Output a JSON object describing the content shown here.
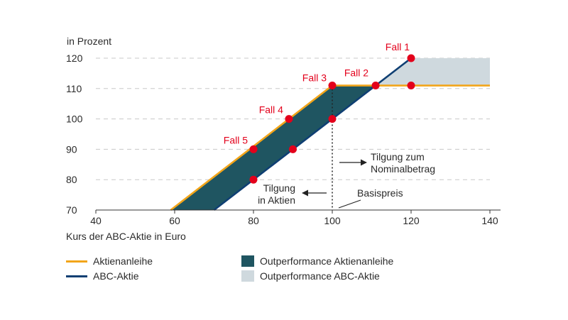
{
  "chart_data": {
    "type": "line",
    "ylabel": "in Prozent",
    "xlabel": "Kurs der ABC-Aktie in Euro",
    "xlim": [
      40,
      140
    ],
    "ylim": [
      70,
      120
    ],
    "xticks": [
      40,
      60,
      80,
      100,
      120,
      140
    ],
    "yticks": [
      70,
      80,
      90,
      100,
      110,
      120
    ],
    "grid": "horizontal dashed",
    "series": [
      {
        "name": "Aktienanleihe",
        "color": "#f2a51a",
        "points": [
          [
            59,
            70
          ],
          [
            100,
            111
          ],
          [
            140,
            111
          ]
        ]
      },
      {
        "name": "ABC-Aktie",
        "color": "#0f3f73",
        "points": [
          [
            70,
            70
          ],
          [
            120,
            120
          ]
        ]
      }
    ],
    "areas": [
      {
        "name": "Outperformance Aktienanleihe",
        "color": "#1f5561"
      },
      {
        "name": "Outperformance ABC-Aktie",
        "color": "#cfd9de"
      }
    ],
    "cases": [
      {
        "label": "Fall 1",
        "x": 120,
        "y": 120
      },
      {
        "label": "Fall 2",
        "x": 111,
        "y": 111
      },
      {
        "label": "Fall 3",
        "x": 100,
        "y": 111
      },
      {
        "label": "Fall 4",
        "x": 89,
        "y": 100
      },
      {
        "label": "Fall 5",
        "x": 80,
        "y": 90
      }
    ],
    "extra_points": [
      {
        "x": 120,
        "y": 111
      },
      {
        "x": 100,
        "y": 100
      },
      {
        "x": 90,
        "y": 90
      },
      {
        "x": 80,
        "y": 80
      }
    ],
    "strike_x": 100,
    "annotations": {
      "right": [
        "Tilgung zum",
        "Nominalbetrag"
      ],
      "left": [
        "Tilgung",
        "in Aktien"
      ],
      "strike": "Basispreis"
    }
  },
  "colors": {
    "point": "#e3001b",
    "label": "#e3001b"
  }
}
